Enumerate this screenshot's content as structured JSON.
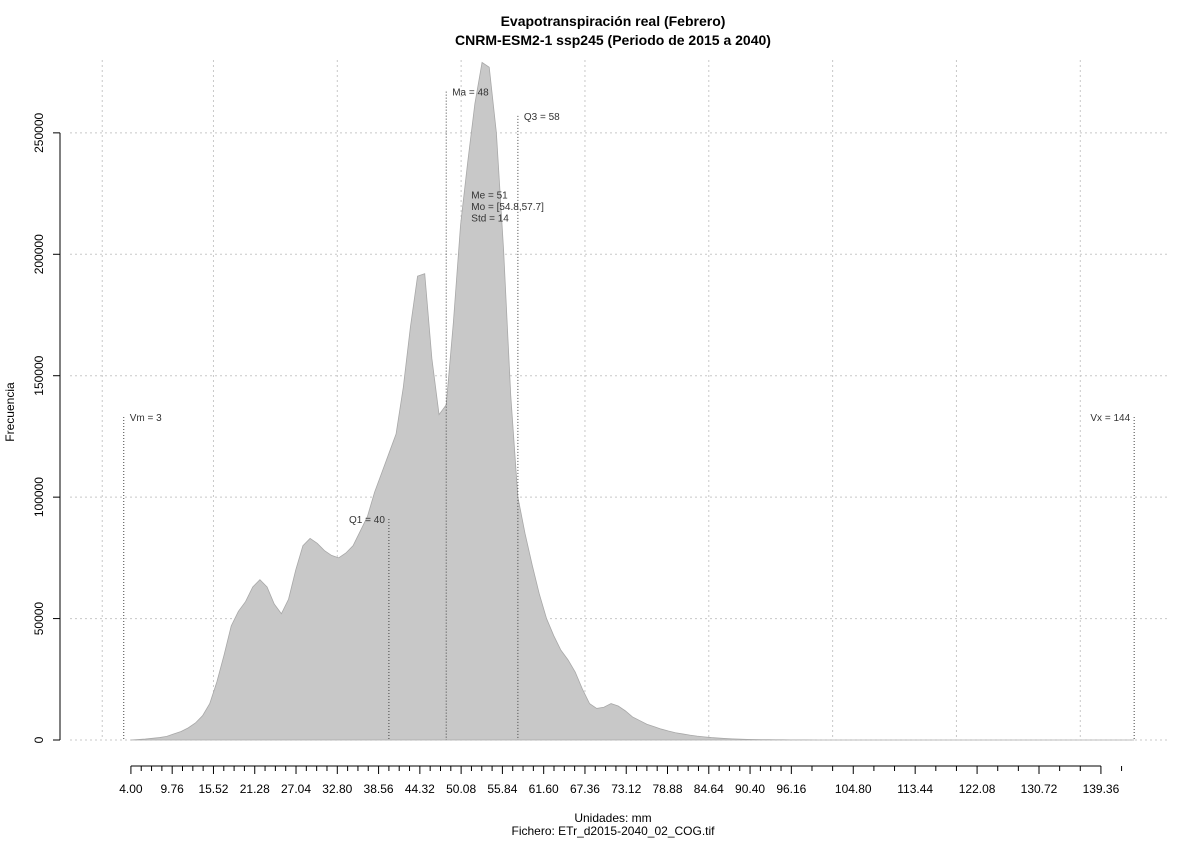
{
  "chart_data": {
    "type": "area",
    "title": "Evapotranspiración real (Febrero)",
    "subtitle": "CNRM-ESM2-1 ssp245 (Periodo de 2015 a 2040)",
    "xlabel": "Unidades: mm",
    "ylabel": "Frecuencia",
    "footer": "Fichero: ETr_d2015-2040_02_COG.tif",
    "xlim": [
      -4.5,
      149
    ],
    "ylim": [
      0,
      280000
    ],
    "grid": true,
    "x_ticks": [
      4.0,
      9.76,
      15.52,
      21.28,
      27.04,
      32.8,
      38.56,
      44.32,
      50.08,
      55.84,
      61.6,
      67.36,
      73.12,
      78.88,
      84.64,
      90.4,
      96.16,
      104.8,
      113.44,
      122.08,
      130.72,
      139.36
    ],
    "x_tick_labels": [
      "4.00",
      "9.76",
      "15.52",
      "21.28",
      "27.04",
      "32.80",
      "38.56",
      "44.32",
      "50.08",
      "55.84",
      "61.60",
      "67.36",
      "73.12",
      "78.88",
      "84.64",
      "90.40",
      "96.16",
      "104.80",
      "113.44",
      "122.08",
      "130.72",
      "139.36"
    ],
    "x_minor_ticks": [
      5.44,
      6.88,
      8.32,
      11.2,
      12.64,
      14.08,
      16.96,
      18.4,
      19.84,
      22.72,
      24.16,
      25.6,
      28.48,
      29.92,
      31.36,
      34.24,
      35.68,
      37.12,
      40.0,
      41.44,
      42.88,
      45.76,
      47.2,
      48.64,
      51.52,
      52.96,
      54.4,
      57.28,
      58.72,
      60.16,
      63.04,
      64.48,
      65.92,
      68.8,
      70.24,
      71.68,
      74.56,
      76.0,
      77.44,
      80.32,
      81.76,
      83.2,
      86.08,
      87.52,
      88.96,
      91.84,
      93.28,
      94.72,
      99.04,
      101.92,
      107.68,
      110.56,
      116.32,
      119.2,
      124.96,
      127.84,
      133.6,
      136.48,
      142.24
    ],
    "y_ticks": [
      0,
      50000,
      100000,
      150000,
      200000,
      250000
    ],
    "y_tick_labels": [
      "0",
      "50000",
      "100000",
      "150000",
      "200000",
      "250000"
    ],
    "x_grid": [
      0,
      15.52,
      32.8,
      50.08,
      67.36,
      84.64,
      101.92,
      119.2,
      136.48
    ],
    "series": [
      {
        "x": [
          4,
          5,
          6,
          7,
          8,
          9,
          10,
          11,
          12,
          13,
          14,
          15,
          16,
          17,
          18,
          19,
          20,
          21,
          22,
          23,
          24,
          25,
          26,
          27,
          28,
          29,
          30,
          31,
          32,
          33,
          34,
          35,
          36,
          37,
          38,
          39,
          40,
          41,
          42,
          43,
          44,
          45,
          46,
          47,
          48,
          49,
          50,
          51,
          52,
          53,
          54,
          55,
          56,
          57,
          58,
          59,
          60,
          61,
          62,
          63,
          64,
          65,
          66,
          67,
          68,
          69,
          70,
          71,
          72,
          73,
          74,
          75,
          76,
          77,
          78,
          79,
          80,
          81,
          82,
          83,
          84,
          85,
          86,
          87,
          88,
          89,
          90,
          91,
          92,
          93,
          94,
          95,
          96,
          97,
          98,
          100,
          105,
          110,
          115,
          120,
          125,
          130,
          135,
          140,
          144
        ],
        "values": [
          0,
          200,
          400,
          700,
          1000,
          1500,
          2500,
          3500,
          5000,
          7000,
          10000,
          15000,
          24000,
          35000,
          47000,
          53000,
          57000,
          63000,
          66000,
          63000,
          56000,
          52000,
          58000,
          70000,
          80000,
          83000,
          81000,
          78000,
          76000,
          75000,
          77000,
          80000,
          86000,
          92000,
          102000,
          110000,
          118000,
          126000,
          145000,
          170000,
          191000,
          192000,
          157000,
          134000,
          138000,
          172000,
          212000,
          238000,
          262000,
          279000,
          277000,
          250000,
          202000,
          142000,
          100000,
          85000,
          72000,
          60000,
          50000,
          43000,
          37000,
          33000,
          28000,
          21000,
          15000,
          13000,
          13500,
          15000,
          14000,
          12000,
          9500,
          8000,
          6500,
          5500,
          4500,
          3700,
          3000,
          2500,
          2000,
          1600,
          1300,
          1000,
          800,
          600,
          450,
          350,
          250,
          200,
          150,
          120,
          100,
          80,
          60,
          40,
          20,
          5,
          0,
          0,
          0,
          0,
          0,
          0,
          0,
          0,
          0
        ]
      }
    ],
    "annotations": [
      {
        "label": "Vm = 3",
        "x": 3,
        "line_top": 133000,
        "anchor": "start"
      },
      {
        "label": "Q1 = 40",
        "x": 40,
        "line_top": 91000,
        "anchor": "end"
      },
      {
        "label": "Ma = 48",
        "x": 48,
        "line_top": 267000,
        "anchor": "start"
      },
      {
        "label": "Q3 = 58",
        "x": 58,
        "line_top": 257000,
        "anchor": "start"
      },
      {
        "label": "Vx = 144",
        "x": 144,
        "line_top": 133000,
        "anchor": "end"
      }
    ],
    "stats_block": {
      "lines": [
        "Me = 51",
        "Mo = [54.8,57.7]",
        "Std = 14"
      ],
      "x": 51.5,
      "y": 218000
    }
  }
}
